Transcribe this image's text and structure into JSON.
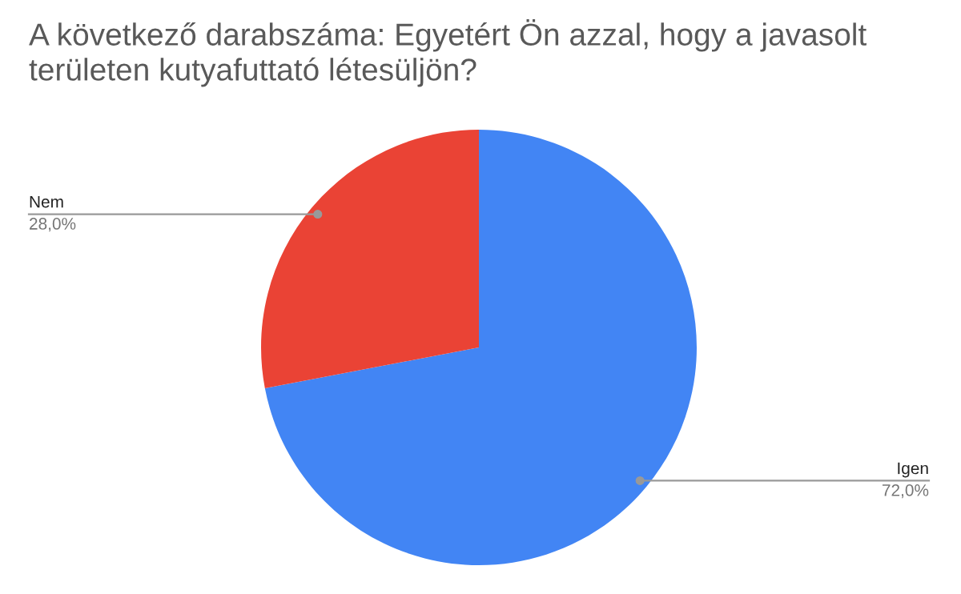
{
  "chart_data": {
    "type": "pie",
    "title": "A következő darabszáma: Egyetért Ön azzal, hogy a javasolt területen kutyafuttató létesüljön?",
    "categories": [
      "Igen",
      "Nem"
    ],
    "values": [
      72,
      28
    ],
    "colors": [
      "#4285f4",
      "#ea4335"
    ],
    "value_labels": [
      "72,0%",
      "28,0%"
    ],
    "legend": false
  }
}
